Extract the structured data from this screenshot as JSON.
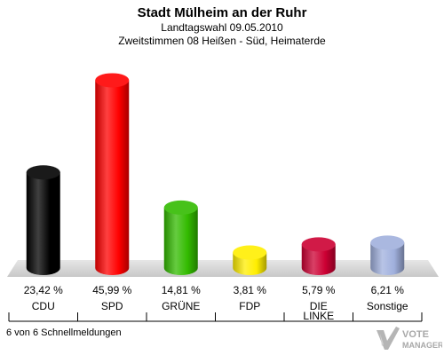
{
  "header": {
    "title": "Stadt Mülheim an der Ruhr",
    "subtitle": "Landtagswahl 09.05.2010",
    "subtitle2": "Zweitstimmen 08 Heißen - Süd, Heimaterde"
  },
  "footer": {
    "status": "6 von 6 Schnellmeldungen"
  },
  "logo": {
    "line1": "VOTE",
    "line2": "MANAGER"
  },
  "chart_data": {
    "type": "bar",
    "categories": [
      "CDU",
      "SPD",
      "GRÜNE",
      "FDP",
      "DIE LINKE",
      "Sonstige"
    ],
    "category_lines": [
      [
        "CDU"
      ],
      [
        "SPD"
      ],
      [
        "GRÜNE"
      ],
      [
        "FDP"
      ],
      [
        "DIE",
        "LINKE"
      ],
      [
        "Sonstige"
      ]
    ],
    "values": [
      23.42,
      45.99,
      14.81,
      3.81,
      5.79,
      6.21
    ],
    "value_labels": [
      "23,42 %",
      "45,99 %",
      "14,81 %",
      "3,81 %",
      "5,79 %",
      "6,21 %"
    ],
    "colors": [
      "#000000",
      "#ff0000",
      "#33bb00",
      "#ffee00",
      "#cc0033",
      "#a0b0dd"
    ],
    "ylim": [
      0,
      50
    ]
  }
}
